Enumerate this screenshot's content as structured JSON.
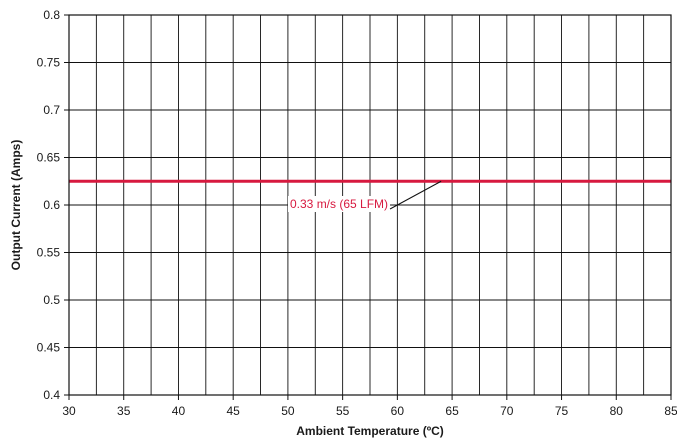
{
  "chart_data": {
    "type": "line",
    "title": "",
    "xlabel": "Ambient Temperature (ºC)",
    "ylabel": "Output Current (Amps)",
    "xlim": [
      30,
      85
    ],
    "ylim": [
      0.4,
      0.8
    ],
    "x_ticks": [
      30,
      35,
      40,
      45,
      50,
      55,
      60,
      65,
      70,
      75,
      80,
      85
    ],
    "x_tick_labels": [
      "30",
      "35",
      "40",
      "45",
      "50",
      "55",
      "60",
      "65",
      "70",
      "75",
      "80",
      "85"
    ],
    "y_ticks": [
      0.4,
      0.45,
      0.5,
      0.55,
      0.6,
      0.65,
      0.7,
      0.75,
      0.8
    ],
    "y_tick_labels": [
      "0.4",
      "0.45",
      "0.5",
      "0.55",
      "0.6",
      "0.65",
      "0.7",
      "0.75",
      "0.8"
    ],
    "x_minor_step": 2.5,
    "grid": true,
    "series": [
      {
        "name": "0.33 m/s (65 LFM)",
        "color": "#d7193f",
        "x": [
          30,
          85
        ],
        "y": [
          0.625,
          0.625
        ]
      }
    ],
    "annotations": [
      {
        "text": "0.33 m/s (65 LFM)",
        "series": 0,
        "points_to": {
          "x": 64,
          "y": 0.625
        },
        "color": "#d7193f"
      }
    ]
  }
}
